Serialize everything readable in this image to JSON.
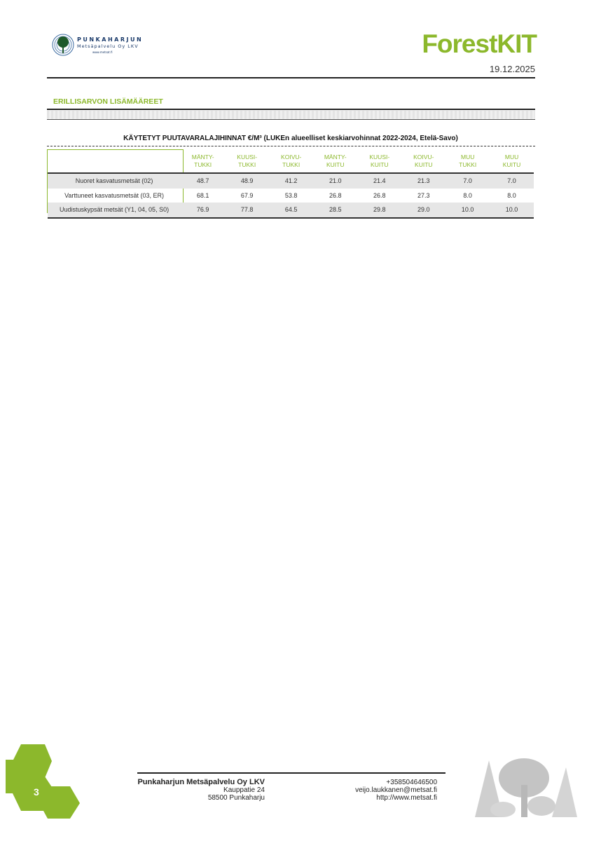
{
  "header": {
    "logo": {
      "name": "PUNKAHARJUN",
      "sub": "Metsäpalvelu Oy LKV",
      "url": "www.metsat.fi"
    },
    "brand": "ForestKIT",
    "date": "19.12.2025"
  },
  "section_title": "ERILLISARVON LISÄMÄÄREET",
  "table": {
    "title": "KÄYTETYT PUUTAVARALAJIHINNAT €/M³ (LUKEn alueelliset keskiarvohinnat 2022-2024, Etelä-Savo)",
    "columns": [
      [
        "MÄNTY-",
        "TUKKI"
      ],
      [
        "KUUSI-",
        "TUKKI"
      ],
      [
        "KOIVU-",
        "TUKKI"
      ],
      [
        "MÄNTY-",
        "KUITU"
      ],
      [
        "KUUSI-",
        "KUITU"
      ],
      [
        "KOIVU-",
        "KUITU"
      ],
      [
        "MUU",
        "TUKKI"
      ],
      [
        "MUU",
        "KUITU"
      ]
    ],
    "rows": [
      {
        "label": "Nuoret kasvatusmetsät (02)",
        "values": [
          "48.7",
          "48.9",
          "41.2",
          "21.0",
          "21.4",
          "21.3",
          "7.0",
          "7.0"
        ]
      },
      {
        "label": "Varttuneet kasvatusmetsät (03, ER)",
        "values": [
          "68.1",
          "67.9",
          "53.8",
          "26.8",
          "26.8",
          "27.3",
          "8.0",
          "8.0"
        ]
      },
      {
        "label": "Uudistuskypsät metsät (Y1, 04, 05, S0)",
        "values": [
          "76.9",
          "77.8",
          "64.5",
          "28.5",
          "29.8",
          "29.0",
          "10.0",
          "10.0"
        ]
      }
    ]
  },
  "footer": {
    "page_number": "3",
    "company": "Punkaharjun Metsäpalvelu Oy LKV",
    "street": "Kauppatie 24",
    "city": "58500 Punkaharju",
    "phone": "+358504646500",
    "email": "veijo.laukkanen@metsat.fi",
    "web": "http://www.metsat.fi"
  },
  "colors": {
    "accent": "#8cb82c",
    "text": "#222222",
    "shade": "#e6e6e6"
  }
}
